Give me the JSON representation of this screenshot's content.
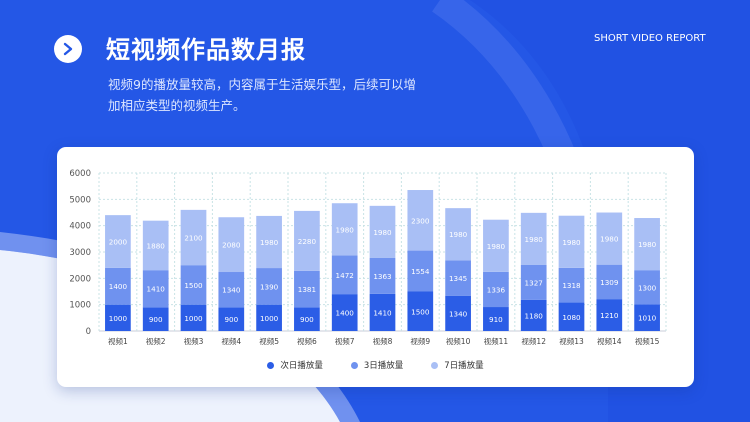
{
  "header": {
    "title": "短视频作品数月报",
    "subtitle": "视频9的播放量较高，内容属于生活娱乐型，后续可以增加相应类型的视频生产。",
    "report_label": "SHORT VIDEO REPORT",
    "icon": "play-arrow-icon"
  },
  "colors": {
    "background": "#2457e6",
    "series_1": "#2b5de6",
    "series_2": "#6f92ef",
    "series_3": "#a9bff5"
  },
  "chart_data": {
    "type": "bar",
    "stacked": true,
    "categories": [
      "视频1",
      "视频2",
      "视频3",
      "视频4",
      "视频5",
      "视频6",
      "视频7",
      "视频8",
      "视频9",
      "视频10",
      "视频11",
      "视频12",
      "视频13",
      "视频14",
      "视频15"
    ],
    "series": [
      {
        "name": "次日播放量",
        "values": [
          1000,
          900,
          1000,
          900,
          1000,
          900,
          1400,
          1410,
          1500,
          1340,
          910,
          1180,
          1080,
          1210,
          1010
        ]
      },
      {
        "name": "3日播放量",
        "values": [
          1400,
          1410,
          1500,
          1340,
          1390,
          1381,
          1472,
          1363,
          1554,
          1345,
          1336,
          1327,
          1318,
          1309,
          1300
        ]
      },
      {
        "name": "7日播放量",
        "values": [
          2000,
          1880,
          2100,
          2080,
          1980,
          2280,
          1980,
          1980,
          2300,
          1980,
          1980,
          1980,
          1980,
          1980,
          1980
        ]
      }
    ],
    "yticks": [
      0,
      1000,
      2000,
      3000,
      4000,
      5000,
      6000
    ],
    "ylim": [
      0,
      6000
    ],
    "grid": true,
    "legend_position": "bottom-center",
    "title": "",
    "xlabel": "",
    "ylabel": ""
  }
}
